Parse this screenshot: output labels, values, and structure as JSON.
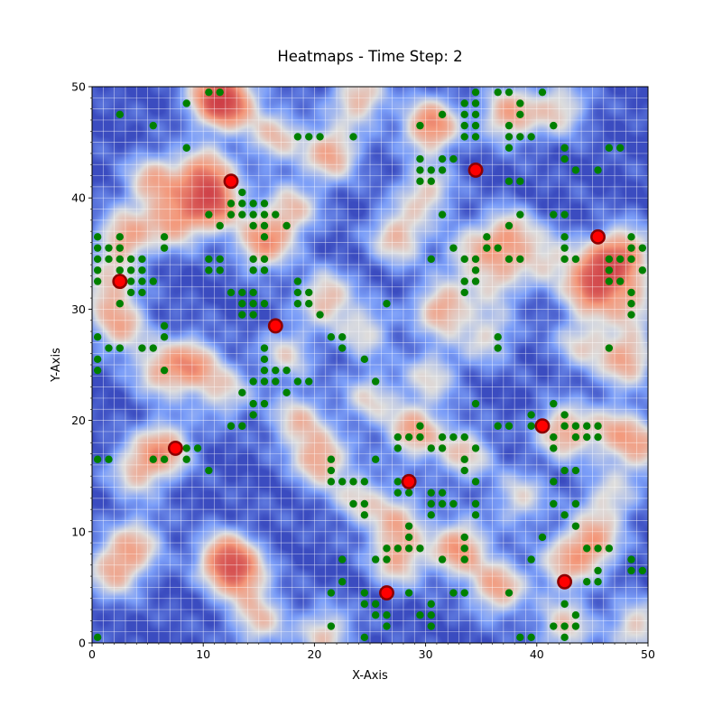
{
  "colors": {
    "heat_low": "#3b4cc0",
    "heat_mid": "#dddddd",
    "heat_high": "#b40426",
    "agent_fill": "#008000",
    "target_fill": "#ff0000",
    "target_stroke": "#8b0000",
    "grid_line": "#ffffff"
  },
  "chart_data": {
    "type": "heatmap",
    "title": "Heatmaps - Time Step: 2",
    "xlabel": "X-Axis",
    "ylabel": "Y-Axis",
    "xlim": [
      0,
      50
    ],
    "ylim": [
      0,
      50
    ],
    "xticks": [
      0,
      10,
      20,
      30,
      40,
      50
    ],
    "yticks": [
      0,
      10,
      20,
      30,
      40,
      50
    ],
    "colormap": "coolwarm",
    "grid": true,
    "grid_spacing": 1,
    "heat_hotspots": [
      [
        11,
        49,
        0.9
      ],
      [
        12.5,
        48.5,
        0.8
      ],
      [
        24,
        49,
        0.7
      ],
      [
        37.5,
        47.5,
        0.8
      ],
      [
        42,
        48,
        0.6
      ],
      [
        30.5,
        46.5,
        1.0
      ],
      [
        21.5,
        44,
        0.8
      ],
      [
        16.5,
        45.5,
        0.6
      ],
      [
        10,
        42,
        0.9
      ],
      [
        5.5,
        41.5,
        0.7
      ],
      [
        7.5,
        38,
        0.8
      ],
      [
        11,
        39.5,
        1.0
      ],
      [
        3,
        36.5,
        0.8
      ],
      [
        15.5,
        36,
        0.9
      ],
      [
        18,
        39,
        0.6
      ],
      [
        27.5,
        36.5,
        0.7
      ],
      [
        30,
        40.5,
        0.6
      ],
      [
        37.5,
        36.5,
        0.8
      ],
      [
        34,
        35,
        0.5
      ],
      [
        46,
        34,
        0.6
      ],
      [
        48,
        35,
        0.8
      ],
      [
        45,
        32,
        1.0
      ],
      [
        48.5,
        30.5,
        0.6
      ],
      [
        41,
        34.5,
        0.5
      ],
      [
        1.5,
        32,
        0.6
      ],
      [
        2.5,
        28.5,
        0.7
      ],
      [
        21,
        31,
        0.7
      ],
      [
        31.5,
        30,
        0.8
      ],
      [
        36.5,
        32.5,
        0.5
      ],
      [
        24.5,
        28,
        0.5
      ],
      [
        9,
        25,
        0.8
      ],
      [
        6,
        24.5,
        0.6
      ],
      [
        17.5,
        26,
        0.5
      ],
      [
        44,
        27,
        0.5
      ],
      [
        48,
        25.5,
        0.8
      ],
      [
        30.5,
        24,
        0.5
      ],
      [
        35.5,
        27.5,
        0.5
      ],
      [
        6.5,
        17.5,
        0.8
      ],
      [
        4,
        15.5,
        0.6
      ],
      [
        18.5,
        20,
        0.6
      ],
      [
        20.5,
        16.5,
        0.8
      ],
      [
        29,
        19,
        0.8
      ],
      [
        33.5,
        17,
        0.6
      ],
      [
        42.5,
        19,
        0.8
      ],
      [
        47,
        19,
        0.6
      ],
      [
        49.5,
        17.5,
        0.6
      ],
      [
        12,
        7.5,
        1.0
      ],
      [
        13.5,
        6,
        0.7
      ],
      [
        2,
        6.5,
        0.7
      ],
      [
        4,
        9,
        0.6
      ],
      [
        27.5,
        11,
        0.6
      ],
      [
        27.5,
        7.5,
        0.7
      ],
      [
        33,
        8.5,
        0.9
      ],
      [
        36.5,
        5,
        0.8
      ],
      [
        42.5,
        7,
        0.6
      ],
      [
        45,
        9,
        0.8
      ],
      [
        15,
        2,
        0.6
      ],
      [
        21,
        0.8,
        0.6
      ],
      [
        42.5,
        1.5,
        0.6
      ],
      [
        49,
        1.5,
        0.6
      ],
      [
        24,
        13,
        0.5
      ],
      [
        38.5,
        13,
        0.5
      ],
      [
        46.5,
        13,
        0.5
      ],
      [
        12,
        22.5,
        0.5
      ],
      [
        25,
        22,
        0.5
      ]
    ],
    "agents": [
      [
        0.5,
        0.5
      ],
      [
        24.5,
        0.5
      ],
      [
        21.5,
        1.5
      ],
      [
        25.5,
        2.5
      ],
      [
        26.5,
        2.5
      ],
      [
        29.5,
        2.5
      ],
      [
        30.5,
        2.5
      ],
      [
        26.5,
        1.5
      ],
      [
        30.5,
        1.5
      ],
      [
        41.5,
        1.5
      ],
      [
        42.5,
        1.5
      ],
      [
        43.5,
        1.5
      ],
      [
        42.5,
        0.5
      ],
      [
        43.5,
        2.5
      ],
      [
        38.5,
        0.5
      ],
      [
        39.5,
        0.5
      ],
      [
        24.5,
        3.5
      ],
      [
        25.5,
        3.5
      ],
      [
        30.5,
        3.5
      ],
      [
        42.5,
        3.5
      ],
      [
        21.5,
        4.5
      ],
      [
        24.5,
        4.5
      ],
      [
        28.5,
        4.5
      ],
      [
        32.5,
        4.5
      ],
      [
        33.5,
        4.5
      ],
      [
        37.5,
        4.5
      ],
      [
        22.5,
        5.5
      ],
      [
        44.5,
        5.5
      ],
      [
        45.5,
        5.5
      ],
      [
        45.5,
        6.5
      ],
      [
        48.5,
        6.5
      ],
      [
        49.5,
        6.5
      ],
      [
        22.5,
        7.5
      ],
      [
        25.5,
        7.5
      ],
      [
        26.5,
        7.5
      ],
      [
        31.5,
        7.5
      ],
      [
        33.5,
        7.5
      ],
      [
        39.5,
        7.5
      ],
      [
        48.5,
        7.5
      ],
      [
        26.5,
        8.5
      ],
      [
        27.5,
        8.5
      ],
      [
        28.5,
        8.5
      ],
      [
        29.5,
        8.5
      ],
      [
        33.5,
        8.5
      ],
      [
        44.5,
        8.5
      ],
      [
        45.5,
        8.5
      ],
      [
        46.5,
        8.5
      ],
      [
        28.5,
        9.5
      ],
      [
        33.5,
        9.5
      ],
      [
        40.5,
        9.5
      ],
      [
        28.5,
        10.5
      ],
      [
        43.5,
        10.5
      ],
      [
        24.5,
        11.5
      ],
      [
        30.5,
        11.5
      ],
      [
        34.5,
        11.5
      ],
      [
        42.5,
        11.5
      ],
      [
        23.5,
        12.5
      ],
      [
        24.5,
        12.5
      ],
      [
        30.5,
        12.5
      ],
      [
        31.5,
        12.5
      ],
      [
        32.5,
        12.5
      ],
      [
        34.5,
        12.5
      ],
      [
        41.5,
        12.5
      ],
      [
        43.5,
        12.5
      ],
      [
        30.5,
        13.5
      ],
      [
        31.5,
        13.5
      ],
      [
        27.5,
        13.5
      ],
      [
        28.5,
        13.5
      ],
      [
        23.5,
        14.5
      ],
      [
        24.5,
        14.5
      ],
      [
        21.5,
        14.5
      ],
      [
        22.5,
        14.5
      ],
      [
        27.5,
        14.5
      ],
      [
        34.5,
        14.5
      ],
      [
        41.5,
        14.5
      ],
      [
        21.5,
        15.5
      ],
      [
        10.5,
        15.5
      ],
      [
        33.5,
        15.5
      ],
      [
        42.5,
        15.5
      ],
      [
        43.5,
        15.5
      ],
      [
        0.5,
        16.5
      ],
      [
        1.5,
        16.5
      ],
      [
        5.5,
        16.5
      ],
      [
        6.5,
        16.5
      ],
      [
        8.5,
        16.5
      ],
      [
        21.5,
        16.5
      ],
      [
        25.5,
        16.5
      ],
      [
        33.5,
        16.5
      ],
      [
        7.5,
        17.5
      ],
      [
        8.5,
        17.5
      ],
      [
        9.5,
        17.5
      ],
      [
        27.5,
        17.5
      ],
      [
        30.5,
        17.5
      ],
      [
        31.5,
        17.5
      ],
      [
        34.5,
        17.5
      ],
      [
        41.5,
        17.5
      ],
      [
        27.5,
        18.5
      ],
      [
        28.5,
        18.5
      ],
      [
        29.5,
        18.5
      ],
      [
        31.5,
        18.5
      ],
      [
        32.5,
        18.5
      ],
      [
        33.5,
        18.5
      ],
      [
        41.5,
        18.5
      ],
      [
        43.5,
        18.5
      ],
      [
        44.5,
        18.5
      ],
      [
        45.5,
        18.5
      ],
      [
        12.5,
        19.5
      ],
      [
        13.5,
        19.5
      ],
      [
        29.5,
        19.5
      ],
      [
        36.5,
        19.5
      ],
      [
        37.5,
        19.5
      ],
      [
        39.5,
        19.5
      ],
      [
        42.5,
        19.5
      ],
      [
        43.5,
        19.5
      ],
      [
        44.5,
        19.5
      ],
      [
        45.5,
        19.5
      ],
      [
        42.5,
        20.5
      ],
      [
        14.5,
        20.5
      ],
      [
        39.5,
        20.5
      ],
      [
        41.5,
        21.5
      ],
      [
        14.5,
        21.5
      ],
      [
        15.5,
        21.5
      ],
      [
        34.5,
        21.5
      ],
      [
        13.5,
        22.5
      ],
      [
        17.5,
        22.5
      ],
      [
        14.5,
        23.5
      ],
      [
        15.5,
        23.5
      ],
      [
        16.5,
        23.5
      ],
      [
        18.5,
        23.5
      ],
      [
        19.5,
        23.5
      ],
      [
        25.5,
        23.5
      ],
      [
        15.5,
        24.5
      ],
      [
        16.5,
        24.5
      ],
      [
        17.5,
        24.5
      ],
      [
        0.5,
        24.5
      ],
      [
        6.5,
        24.5
      ],
      [
        0.5,
        25.5
      ],
      [
        15.5,
        25.5
      ],
      [
        24.5,
        25.5
      ],
      [
        1.5,
        26.5
      ],
      [
        2.5,
        26.5
      ],
      [
        4.5,
        26.5
      ],
      [
        5.5,
        26.5
      ],
      [
        15.5,
        26.5
      ],
      [
        22.5,
        26.5
      ],
      [
        36.5,
        26.5
      ],
      [
        46.5,
        26.5
      ],
      [
        0.5,
        27.5
      ],
      [
        6.5,
        27.5
      ],
      [
        21.5,
        27.5
      ],
      [
        22.5,
        27.5
      ],
      [
        36.5,
        27.5
      ],
      [
        6.5,
        28.5
      ],
      [
        16.5,
        28.5
      ],
      [
        20.5,
        29.5
      ],
      [
        13.5,
        29.5
      ],
      [
        14.5,
        29.5
      ],
      [
        48.5,
        29.5
      ],
      [
        13.5,
        30.5
      ],
      [
        14.5,
        30.5
      ],
      [
        15.5,
        30.5
      ],
      [
        2.5,
        30.5
      ],
      [
        18.5,
        30.5
      ],
      [
        19.5,
        30.5
      ],
      [
        26.5,
        30.5
      ],
      [
        48.5,
        30.5
      ],
      [
        12.5,
        31.5
      ],
      [
        13.5,
        31.5
      ],
      [
        14.5,
        31.5
      ],
      [
        18.5,
        31.5
      ],
      [
        19.5,
        31.5
      ],
      [
        3.5,
        31.5
      ],
      [
        4.5,
        31.5
      ],
      [
        33.5,
        31.5
      ],
      [
        48.5,
        31.5
      ],
      [
        0.5,
        32.5
      ],
      [
        2.5,
        32.5
      ],
      [
        3.5,
        32.5
      ],
      [
        4.5,
        32.5
      ],
      [
        5.5,
        32.5
      ],
      [
        18.5,
        32.5
      ],
      [
        33.5,
        32.5
      ],
      [
        34.5,
        32.5
      ],
      [
        46.5,
        32.5
      ],
      [
        47.5,
        32.5
      ],
      [
        0.5,
        33.5
      ],
      [
        2.5,
        33.5
      ],
      [
        3.5,
        33.5
      ],
      [
        4.5,
        33.5
      ],
      [
        10.5,
        33.5
      ],
      [
        11.5,
        33.5
      ],
      [
        14.5,
        33.5
      ],
      [
        15.5,
        33.5
      ],
      [
        34.5,
        33.5
      ],
      [
        46.5,
        33.5
      ],
      [
        49.5,
        33.5
      ],
      [
        0.5,
        34.5
      ],
      [
        1.5,
        34.5
      ],
      [
        2.5,
        34.5
      ],
      [
        3.5,
        34.5
      ],
      [
        4.5,
        34.5
      ],
      [
        10.5,
        34.5
      ],
      [
        11.5,
        34.5
      ],
      [
        14.5,
        34.5
      ],
      [
        15.5,
        34.5
      ],
      [
        30.5,
        34.5
      ],
      [
        33.5,
        34.5
      ],
      [
        34.5,
        34.5
      ],
      [
        37.5,
        34.5
      ],
      [
        38.5,
        34.5
      ],
      [
        42.5,
        34.5
      ],
      [
        43.5,
        34.5
      ],
      [
        46.5,
        34.5
      ],
      [
        47.5,
        34.5
      ],
      [
        48.5,
        34.5
      ],
      [
        0.5,
        35.5
      ],
      [
        1.5,
        35.5
      ],
      [
        2.5,
        35.5
      ],
      [
        6.5,
        35.5
      ],
      [
        32.5,
        35.5
      ],
      [
        35.5,
        35.5
      ],
      [
        36.5,
        35.5
      ],
      [
        42.5,
        35.5
      ],
      [
        48.5,
        35.5
      ],
      [
        49.5,
        35.5
      ],
      [
        0.5,
        36.5
      ],
      [
        2.5,
        36.5
      ],
      [
        6.5,
        36.5
      ],
      [
        15.5,
        36.5
      ],
      [
        35.5,
        36.5
      ],
      [
        42.5,
        36.5
      ],
      [
        48.5,
        36.5
      ],
      [
        11.5,
        37.5
      ],
      [
        14.5,
        37.5
      ],
      [
        15.5,
        37.5
      ],
      [
        17.5,
        37.5
      ],
      [
        37.5,
        37.5
      ],
      [
        10.5,
        38.5
      ],
      [
        12.5,
        38.5
      ],
      [
        13.5,
        38.5
      ],
      [
        14.5,
        38.5
      ],
      [
        15.5,
        38.5
      ],
      [
        16.5,
        38.5
      ],
      [
        31.5,
        38.5
      ],
      [
        38.5,
        38.5
      ],
      [
        41.5,
        38.5
      ],
      [
        42.5,
        38.5
      ],
      [
        12.5,
        39.5
      ],
      [
        13.5,
        39.5
      ],
      [
        14.5,
        39.5
      ],
      [
        15.5,
        39.5
      ],
      [
        13.5,
        40.5
      ],
      [
        29.5,
        41.5
      ],
      [
        30.5,
        41.5
      ],
      [
        37.5,
        41.5
      ],
      [
        38.5,
        41.5
      ],
      [
        29.5,
        42.5
      ],
      [
        30.5,
        42.5
      ],
      [
        31.5,
        42.5
      ],
      [
        43.5,
        42.5
      ],
      [
        45.5,
        42.5
      ],
      [
        29.5,
        43.5
      ],
      [
        31.5,
        43.5
      ],
      [
        32.5,
        43.5
      ],
      [
        42.5,
        43.5
      ],
      [
        8.5,
        44.5
      ],
      [
        37.5,
        44.5
      ],
      [
        42.5,
        44.5
      ],
      [
        46.5,
        44.5
      ],
      [
        47.5,
        44.5
      ],
      [
        18.5,
        45.5
      ],
      [
        19.5,
        45.5
      ],
      [
        20.5,
        45.5
      ],
      [
        23.5,
        45.5
      ],
      [
        33.5,
        45.5
      ],
      [
        34.5,
        45.5
      ],
      [
        37.5,
        45.5
      ],
      [
        38.5,
        45.5
      ],
      [
        39.5,
        45.5
      ],
      [
        5.5,
        46.5
      ],
      [
        29.5,
        46.5
      ],
      [
        33.5,
        46.5
      ],
      [
        34.5,
        46.5
      ],
      [
        37.5,
        46.5
      ],
      [
        41.5,
        46.5
      ],
      [
        31.5,
        47.5
      ],
      [
        33.5,
        47.5
      ],
      [
        34.5,
        47.5
      ],
      [
        38.5,
        47.5
      ],
      [
        2.5,
        47.5
      ],
      [
        8.5,
        48.5
      ],
      [
        33.5,
        48.5
      ],
      [
        34.5,
        48.5
      ],
      [
        38.5,
        48.5
      ],
      [
        10.5,
        49.5
      ],
      [
        11.5,
        49.5
      ],
      [
        34.5,
        49.5
      ],
      [
        36.5,
        49.5
      ],
      [
        37.5,
        49.5
      ],
      [
        40.5,
        49.5
      ]
    ],
    "targets": [
      [
        12.5,
        41.5
      ],
      [
        34.5,
        42.5
      ],
      [
        2.5,
        32.5
      ],
      [
        45.5,
        36.5
      ],
      [
        16.5,
        28.5
      ],
      [
        7.5,
        17.5
      ],
      [
        40.5,
        19.5
      ],
      [
        28.5,
        14.5
      ],
      [
        26.5,
        4.5
      ],
      [
        42.5,
        5.5
      ]
    ]
  }
}
